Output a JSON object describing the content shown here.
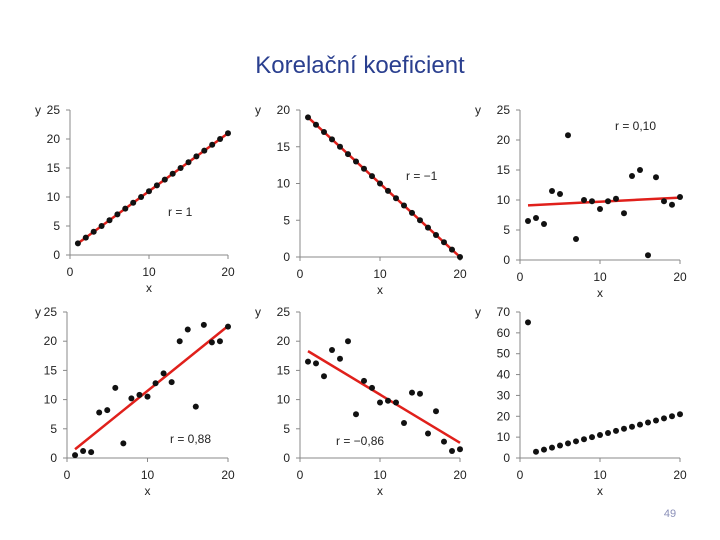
{
  "slide": {
    "title": "Korelační koeficient",
    "page_number": "49"
  },
  "chart_data": [
    {
      "type": "scatter",
      "title": "",
      "xlabel": "x",
      "ylabel": "y",
      "xlim": [
        0,
        20
      ],
      "ylim": [
        0,
        25
      ],
      "xticks": [
        0,
        10,
        20
      ],
      "yticks": [
        0,
        5,
        10,
        15,
        20,
        25
      ],
      "x": [
        1,
        2,
        3,
        4,
        5,
        6,
        7,
        8,
        9,
        10,
        11,
        12,
        13,
        14,
        15,
        16,
        17,
        18,
        19,
        20
      ],
      "y": [
        2,
        3,
        4,
        5,
        6,
        7,
        8,
        9,
        10,
        11,
        12,
        13,
        14,
        15,
        16,
        17,
        18,
        19,
        20,
        21
      ],
      "trendline": {
        "from": [
          1,
          2
        ],
        "to": [
          20,
          21
        ]
      },
      "annotation": "r = 1"
    },
    {
      "type": "scatter",
      "title": "",
      "xlabel": "x",
      "ylabel": "y",
      "xlim": [
        0,
        20
      ],
      "ylim": [
        0,
        20
      ],
      "xticks": [
        0,
        10,
        20
      ],
      "yticks": [
        0,
        5,
        10,
        15,
        20
      ],
      "x": [
        1,
        2,
        3,
        4,
        5,
        6,
        7,
        8,
        9,
        10,
        11,
        12,
        13,
        14,
        15,
        16,
        17,
        18,
        19,
        20
      ],
      "y": [
        19,
        18,
        17,
        16,
        15,
        14,
        13,
        12,
        11,
        10,
        9,
        8,
        7,
        6,
        5,
        4,
        3,
        2,
        1,
        0
      ],
      "trendline": {
        "from": [
          1,
          19
        ],
        "to": [
          20,
          0
        ]
      },
      "annotation": "r = −1"
    },
    {
      "type": "scatter",
      "title": "",
      "xlabel": "x",
      "ylabel": "y",
      "xlim": [
        0,
        20
      ],
      "ylim": [
        0,
        25
      ],
      "xticks": [
        0,
        10,
        20
      ],
      "yticks": [
        0,
        5,
        10,
        15,
        20,
        25
      ],
      "x": [
        1,
        2,
        3,
        4,
        5,
        6,
        7,
        8,
        9,
        10,
        11,
        12,
        13,
        14,
        15,
        16,
        17,
        18,
        19,
        20
      ],
      "y": [
        6.5,
        7,
        6,
        11.5,
        11,
        20.8,
        3.5,
        10,
        9.8,
        8.5,
        9.8,
        10.2,
        7.8,
        14,
        15,
        0.8,
        13.8,
        9.8,
        9.2,
        10.5
      ],
      "trendline": {
        "from": [
          1,
          9.1
        ],
        "to": [
          20,
          10.4
        ]
      },
      "annotation": "r = 0,10"
    },
    {
      "type": "scatter",
      "title": "",
      "xlabel": "x",
      "ylabel": "y",
      "xlim": [
        0,
        20
      ],
      "ylim": [
        0,
        25
      ],
      "xticks": [
        0,
        10,
        20
      ],
      "yticks": [
        0,
        5,
        10,
        15,
        20,
        25
      ],
      "x": [
        1,
        2,
        3,
        4,
        5,
        6,
        7,
        8,
        9,
        10,
        11,
        12,
        13,
        14,
        15,
        16,
        17,
        18,
        19,
        20
      ],
      "y": [
        0.5,
        1.2,
        1,
        7.8,
        8.2,
        12,
        2.5,
        10.2,
        10.8,
        10.5,
        12.8,
        14.5,
        13,
        20,
        22,
        8.8,
        22.8,
        19.8,
        20,
        22.5
      ],
      "trendline": {
        "from": [
          1,
          1.5
        ],
        "to": [
          20,
          22.6
        ]
      },
      "annotation": "r = 0,88"
    },
    {
      "type": "scatter",
      "title": "",
      "xlabel": "x",
      "ylabel": "y",
      "xlim": [
        0,
        20
      ],
      "ylim": [
        0,
        25
      ],
      "xticks": [
        0,
        10,
        20
      ],
      "yticks": [
        0,
        5,
        10,
        15,
        20,
        25
      ],
      "x": [
        1,
        2,
        3,
        4,
        5,
        6,
        7,
        8,
        9,
        10,
        11,
        12,
        13,
        14,
        15,
        16,
        17,
        18,
        19,
        20
      ],
      "y": [
        16.5,
        16.2,
        14,
        18.5,
        17,
        20,
        7.5,
        13.2,
        12,
        9.5,
        9.8,
        9.5,
        6,
        11.2,
        11,
        4.2,
        8,
        2.8,
        1.2,
        1.5
      ],
      "trendline": {
        "from": [
          1,
          18.3
        ],
        "to": [
          20,
          2.6
        ]
      },
      "annotation": "r = −0,86"
    },
    {
      "type": "scatter",
      "title": "",
      "xlabel": "x",
      "ylabel": "y",
      "xlim": [
        0,
        20
      ],
      "ylim": [
        0,
        70
      ],
      "xticks": [
        0,
        10,
        20
      ],
      "yticks": [
        0,
        10,
        20,
        30,
        40,
        50,
        60,
        70
      ],
      "x": [
        1,
        2,
        3,
        4,
        5,
        6,
        7,
        8,
        9,
        10,
        11,
        12,
        13,
        14,
        15,
        16,
        17,
        18,
        19,
        20
      ],
      "y": [
        65,
        3,
        4,
        5,
        6,
        7,
        8,
        9,
        10,
        11,
        12,
        13,
        14,
        15,
        16,
        17,
        18,
        19,
        20,
        21
      ],
      "trendline": null,
      "annotation": ""
    }
  ]
}
